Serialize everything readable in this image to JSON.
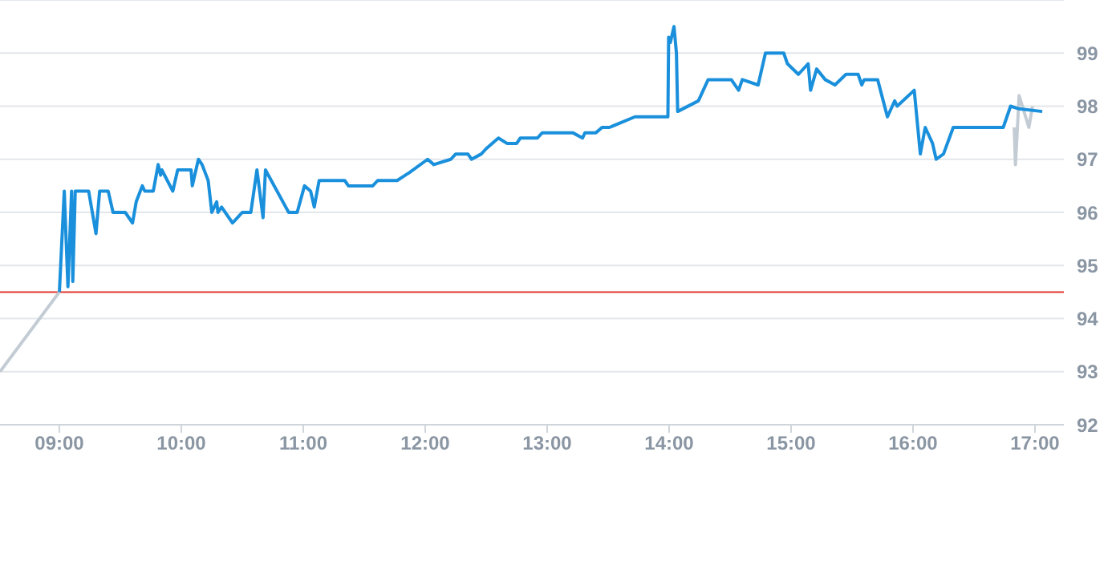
{
  "chart_data": {
    "type": "line",
    "xlim": [
      8.513,
      17.237
    ],
    "xticks": [
      {
        "value": 9,
        "label": "09:00"
      },
      {
        "value": 10,
        "label": "10:00"
      },
      {
        "value": 11,
        "label": "11:00"
      },
      {
        "value": 12,
        "label": "12:00"
      },
      {
        "value": 13,
        "label": "13:00"
      },
      {
        "value": 14,
        "label": "14:00"
      },
      {
        "value": 15,
        "label": "15:00"
      },
      {
        "value": 16,
        "label": "16:00"
      },
      {
        "value": 17,
        "label": "17:00"
      }
    ],
    "ylim": [
      92,
      100
    ],
    "yticks": [
      92,
      93,
      94,
      95,
      96,
      97,
      98,
      99
    ],
    "grid": "y",
    "legend": false,
    "marker": "none",
    "line_style": "solid",
    "ref_lines": [
      {
        "axis": "y",
        "value": 94.5,
        "color": "#e0352b"
      }
    ],
    "series": [
      {
        "color": "#c3ccd4",
        "x": [
          8.513,
          9.0,
          9.01,
          16.83,
          16.84,
          16.87,
          16.95,
          16.98
        ],
        "values": [
          93.0,
          94.5,
          null,
          97.6,
          96.9,
          98.2,
          97.6,
          98.0
        ]
      },
      {
        "color": "#1a90dc",
        "x": [
          9.0,
          9.04,
          9.07,
          9.1,
          9.11,
          9.13,
          9.24,
          9.3,
          9.33,
          9.4,
          9.44,
          9.54,
          9.6,
          9.63,
          9.68,
          9.7,
          9.77,
          9.81,
          9.83,
          9.84,
          9.93,
          9.97,
          10.08,
          10.09,
          10.14,
          10.17,
          10.22,
          10.25,
          10.29,
          10.3,
          10.33,
          10.42,
          10.46,
          10.5,
          10.57,
          10.62,
          10.67,
          10.69,
          10.88,
          10.95,
          11.01,
          11.06,
          11.09,
          11.13,
          11.34,
          11.37,
          11.57,
          11.61,
          11.77,
          11.87,
          12.02,
          12.07,
          12.21,
          12.25,
          12.35,
          12.38,
          12.46,
          12.5,
          12.6,
          12.67,
          12.75,
          12.78,
          12.92,
          12.96,
          13.21,
          13.29,
          13.31,
          13.4,
          13.45,
          13.51,
          13.72,
          13.99,
          13.996,
          14.01,
          14.04,
          14.06,
          14.07,
          14.24,
          14.32,
          14.51,
          14.57,
          14.6,
          14.73,
          14.79,
          14.94,
          14.97,
          15.06,
          15.14,
          15.16,
          15.21,
          15.28,
          15.36,
          15.45,
          15.55,
          15.58,
          15.6,
          15.71,
          15.79,
          15.85,
          15.87,
          16.01,
          16.06,
          16.1,
          16.16,
          16.19,
          16.25,
          16.33,
          16.74,
          16.77,
          16.8,
          16.87,
          17.06
        ],
        "values": [
          94.5,
          96.4,
          94.6,
          96.4,
          94.7,
          96.4,
          96.4,
          95.6,
          96.4,
          96.4,
          96.0,
          96.0,
          95.8,
          96.2,
          96.5,
          96.4,
          96.4,
          96.9,
          96.7,
          96.8,
          96.4,
          96.8,
          96.8,
          96.5,
          97.0,
          96.9,
          96.6,
          96.0,
          96.2,
          96.0,
          96.1,
          95.8,
          95.9,
          96.0,
          96.0,
          96.8,
          95.9,
          96.8,
          96.0,
          96.0,
          96.5,
          96.4,
          96.1,
          96.6,
          96.6,
          96.5,
          96.5,
          96.6,
          96.6,
          96.75,
          97.0,
          96.9,
          97.0,
          97.1,
          97.1,
          97.0,
          97.1,
          97.2,
          97.4,
          97.3,
          97.3,
          97.4,
          97.4,
          97.5,
          97.5,
          97.4,
          97.5,
          97.5,
          97.6,
          97.6,
          97.8,
          97.8,
          99.3,
          99.2,
          99.5,
          99.0,
          97.9,
          98.1,
          98.5,
          98.5,
          98.3,
          98.5,
          98.4,
          99.0,
          99.0,
          98.8,
          98.6,
          98.8,
          98.3,
          98.7,
          98.5,
          98.4,
          98.6,
          98.6,
          98.4,
          98.5,
          98.5,
          97.8,
          98.1,
          98.0,
          98.3,
          97.1,
          97.6,
          97.3,
          97.0,
          97.1,
          97.6,
          97.6,
          97.8,
          98.0,
          97.95,
          97.9
        ]
      }
    ]
  }
}
